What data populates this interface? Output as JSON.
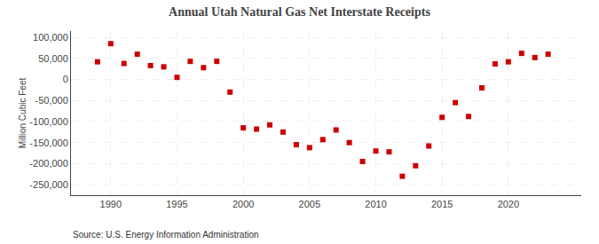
{
  "chart_data": {
    "type": "scatter",
    "title": "Annual Utah Natural Gas Net Interstate Receipts",
    "ylabel": "Million Cubic Feet",
    "annotations": [
      "Source: U.S. Energy Information Administration"
    ],
    "x": [
      1989,
      1990,
      1991,
      1992,
      1993,
      1994,
      1995,
      1996,
      1997,
      1998,
      1999,
      2000,
      2001,
      2002,
      2003,
      2004,
      2005,
      2006,
      2007,
      2008,
      2009,
      2010,
      2011,
      2012,
      2013,
      2014,
      2015,
      2016,
      2017,
      2018,
      2019,
      2020,
      2021,
      2022,
      2023
    ],
    "values": [
      42000,
      85000,
      38000,
      60000,
      33000,
      30000,
      5000,
      43000,
      28000,
      43000,
      -30000,
      -115000,
      -118000,
      -108000,
      -125000,
      -155000,
      -162000,
      -143000,
      -120000,
      -150000,
      -195000,
      -170000,
      -172000,
      -230000,
      -205000,
      -158000,
      -90000,
      -55000,
      -88000,
      -20000,
      37000,
      42000,
      62000,
      52000,
      60000
    ],
    "color": "#cc0000",
    "marker": "square",
    "xlim": [
      1987.0,
      2025.5
    ],
    "xticks": [
      1990,
      1995,
      2000,
      2005,
      2010,
      2015,
      2020
    ],
    "ylim": [
      -275000,
      115000
    ],
    "yticks": [
      {
        "value": 100000,
        "label": "100,000"
      },
      {
        "value": 50000,
        "label": "50,000"
      },
      0,
      {
        "value": -50000,
        "label": "-50,000"
      },
      {
        "value": -100000,
        "label": "-100,000"
      },
      {
        "value": -150000,
        "label": "-150,000"
      },
      {
        "value": -200000,
        "label": "-200,000"
      },
      {
        "value": -250000,
        "label": "-250,000"
      }
    ],
    "grid": true
  }
}
